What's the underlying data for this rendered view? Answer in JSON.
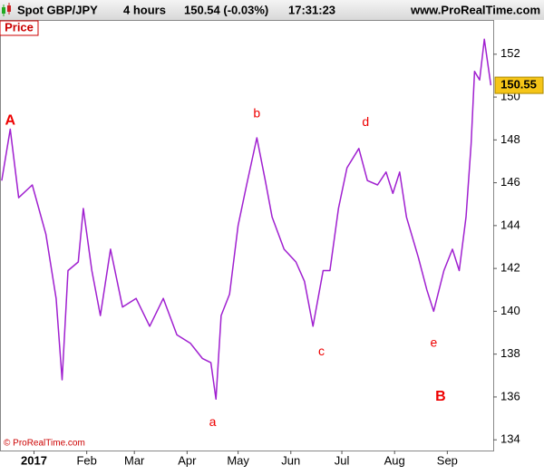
{
  "header": {
    "instrument": "Spot GBP/JPY",
    "timeframe": "4 hours",
    "quote": "150.54 (-0.03%)",
    "time": "17:31:23",
    "site": "www.ProRealTime.com"
  },
  "chart_data": {
    "type": "line",
    "panel_label": "Price",
    "copyright": "© ProRealTime.com",
    "x": [
      -19,
      -14,
      -9,
      -1,
      7,
      13,
      16.5,
      20,
      26,
      29,
      34,
      39,
      45,
      52,
      60,
      68,
      76,
      84,
      92,
      99,
      104,
      107,
      110,
      115,
      120,
      125,
      131,
      136,
      140,
      147,
      154,
      159,
      164,
      170,
      174,
      179,
      184,
      191,
      196,
      202,
      207,
      211,
      215,
      219,
      226,
      231,
      235,
      241,
      246,
      250,
      254,
      257,
      259,
      262,
      264.8,
      268.6
    ],
    "series": [
      {
        "name": "Spot GBP/JPY",
        "color": "#a020d0",
        "values": [
          146.1,
          148.5,
          145.3,
          145.9,
          143.6,
          140.6,
          136.8,
          141.9,
          142.3,
          144.8,
          141.9,
          139.8,
          142.9,
          140.2,
          140.6,
          139.3,
          140.6,
          138.9,
          138.5,
          137.8,
          137.6,
          135.9,
          139.8,
          140.8,
          144,
          145.9,
          148.1,
          146.1,
          144.4,
          142.9,
          142.3,
          141.4,
          139.3,
          141.9,
          141.9,
          144.8,
          146.7,
          147.6,
          146.1,
          145.9,
          146.5,
          145.5,
          146.5,
          144.4,
          142.5,
          141,
          140,
          141.9,
          142.9,
          141.9,
          144.4,
          147.8,
          151.2,
          150.8,
          152.7,
          150.55
        ]
      }
    ],
    "last_price": 150.55,
    "xlim": [
      -20,
      270
    ],
    "ylim": [
      133.5,
      153.6
    ],
    "xticks": [
      {
        "value": 0,
        "label": "2017"
      },
      {
        "value": 31,
        "label": "Feb"
      },
      {
        "value": 59,
        "label": "Mar"
      },
      {
        "value": 90,
        "label": "Apr"
      },
      {
        "value": 120,
        "label": "May"
      },
      {
        "value": 151,
        "label": "Jun"
      },
      {
        "value": 181,
        "label": "Jul"
      },
      {
        "value": 212,
        "label": "Aug"
      },
      {
        "value": 243,
        "label": "Sep"
      }
    ],
    "yticks": [
      134,
      136,
      138,
      140,
      142,
      144,
      146,
      148,
      150,
      152
    ],
    "annotations": [
      {
        "text": "A",
        "x": -14,
        "y": 148.9
      },
      {
        "text": "a",
        "x": 105,
        "y": 134.8
      },
      {
        "text": "b",
        "x": 131,
        "y": 149.2
      },
      {
        "text": "c",
        "x": 169,
        "y": 138.1
      },
      {
        "text": "d",
        "x": 195,
        "y": 148.8
      },
      {
        "text": "e",
        "x": 235,
        "y": 138.5
      },
      {
        "text": "B",
        "x": 239,
        "y": 136.0
      }
    ],
    "grid": false
  }
}
